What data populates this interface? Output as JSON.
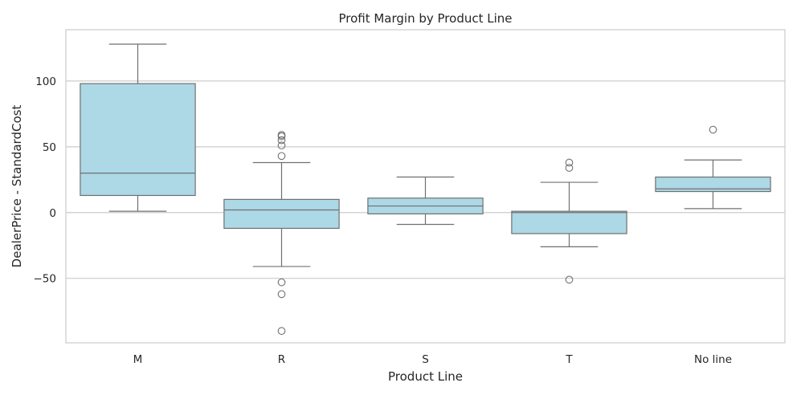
{
  "chart_data": {
    "type": "box",
    "title": "Profit Margin by Product Line",
    "xlabel": "Product Line",
    "ylabel": "DealerPrice - StandardCost",
    "categories": [
      "M",
      "R",
      "S",
      "T",
      "No line"
    ],
    "ylim": [
      -99,
      139
    ],
    "yticks": [
      -50,
      0,
      50,
      100
    ],
    "grid": "horizontal",
    "colors": {
      "box_fill": "#add8e6",
      "line": "#707070",
      "grid": "#cccccc",
      "frame": "#cccccc"
    },
    "boxes": [
      {
        "category": "M",
        "whisker_low": 1,
        "q1": 13,
        "median": 30,
        "q3": 98,
        "whisker_high": 128,
        "outliers": []
      },
      {
        "category": "R",
        "whisker_low": -41,
        "q1": -12,
        "median": 2,
        "q3": 10,
        "whisker_high": 38,
        "outliers": [
          43,
          51,
          55,
          58,
          59,
          -53,
          -62,
          -90
        ]
      },
      {
        "category": "S",
        "whisker_low": -9,
        "q1": -1,
        "median": 5,
        "q3": 11,
        "whisker_high": 27,
        "outliers": []
      },
      {
        "category": "T",
        "whisker_low": -26,
        "q1": -16,
        "median": 0,
        "q3": 1,
        "whisker_high": 23,
        "outliers": [
          34,
          38,
          -51
        ]
      },
      {
        "category": "No line",
        "whisker_low": 3,
        "q1": 16,
        "median": 18,
        "q3": 27,
        "whisker_high": 40,
        "outliers": [
          63
        ]
      }
    ]
  }
}
